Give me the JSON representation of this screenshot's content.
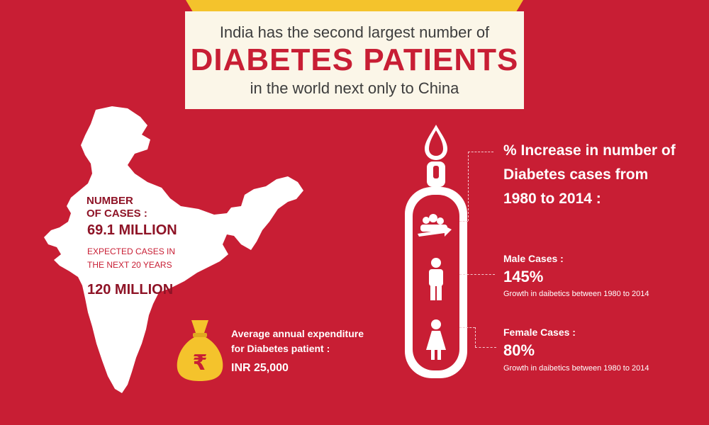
{
  "header": {
    "line1": "India has the second largest number of",
    "line2": "DIABETES PATIENTS",
    "line3": "in the world next only to China"
  },
  "map_stats": {
    "cases_label_1": "NUMBER",
    "cases_label_2": "OF CASES :",
    "cases_value": "69.1 MILLION",
    "expected_label_1": "EXPECTED CASES IN",
    "expected_label_2": "THE NEXT 20 YEARS",
    "expected_value": "120 MILLION"
  },
  "expenditure": {
    "label_1": "Average annual expenditure",
    "label_2": "for Diabetes patient  :",
    "value": "INR 25,000",
    "icon": "money-bag-rupee-icon"
  },
  "increase": {
    "title_1": "% Increase in number of",
    "title_2": "Diabetes cases from",
    "title_3": "1980 to 2014 :"
  },
  "male": {
    "label": "Male Cases :",
    "value": "145%",
    "desc": "Growth in daibetics between 1980 to 2014"
  },
  "female": {
    "label": "Female Cases :",
    "value": "80%",
    "desc": "Growth in daibetics between 1980 to 2014"
  },
  "colors": {
    "background": "#c81e34",
    "banner": "#fbf6e8",
    "banner_tab": "#f4c32c",
    "dark_red_text": "#8e1326",
    "map": "#ffffff"
  }
}
